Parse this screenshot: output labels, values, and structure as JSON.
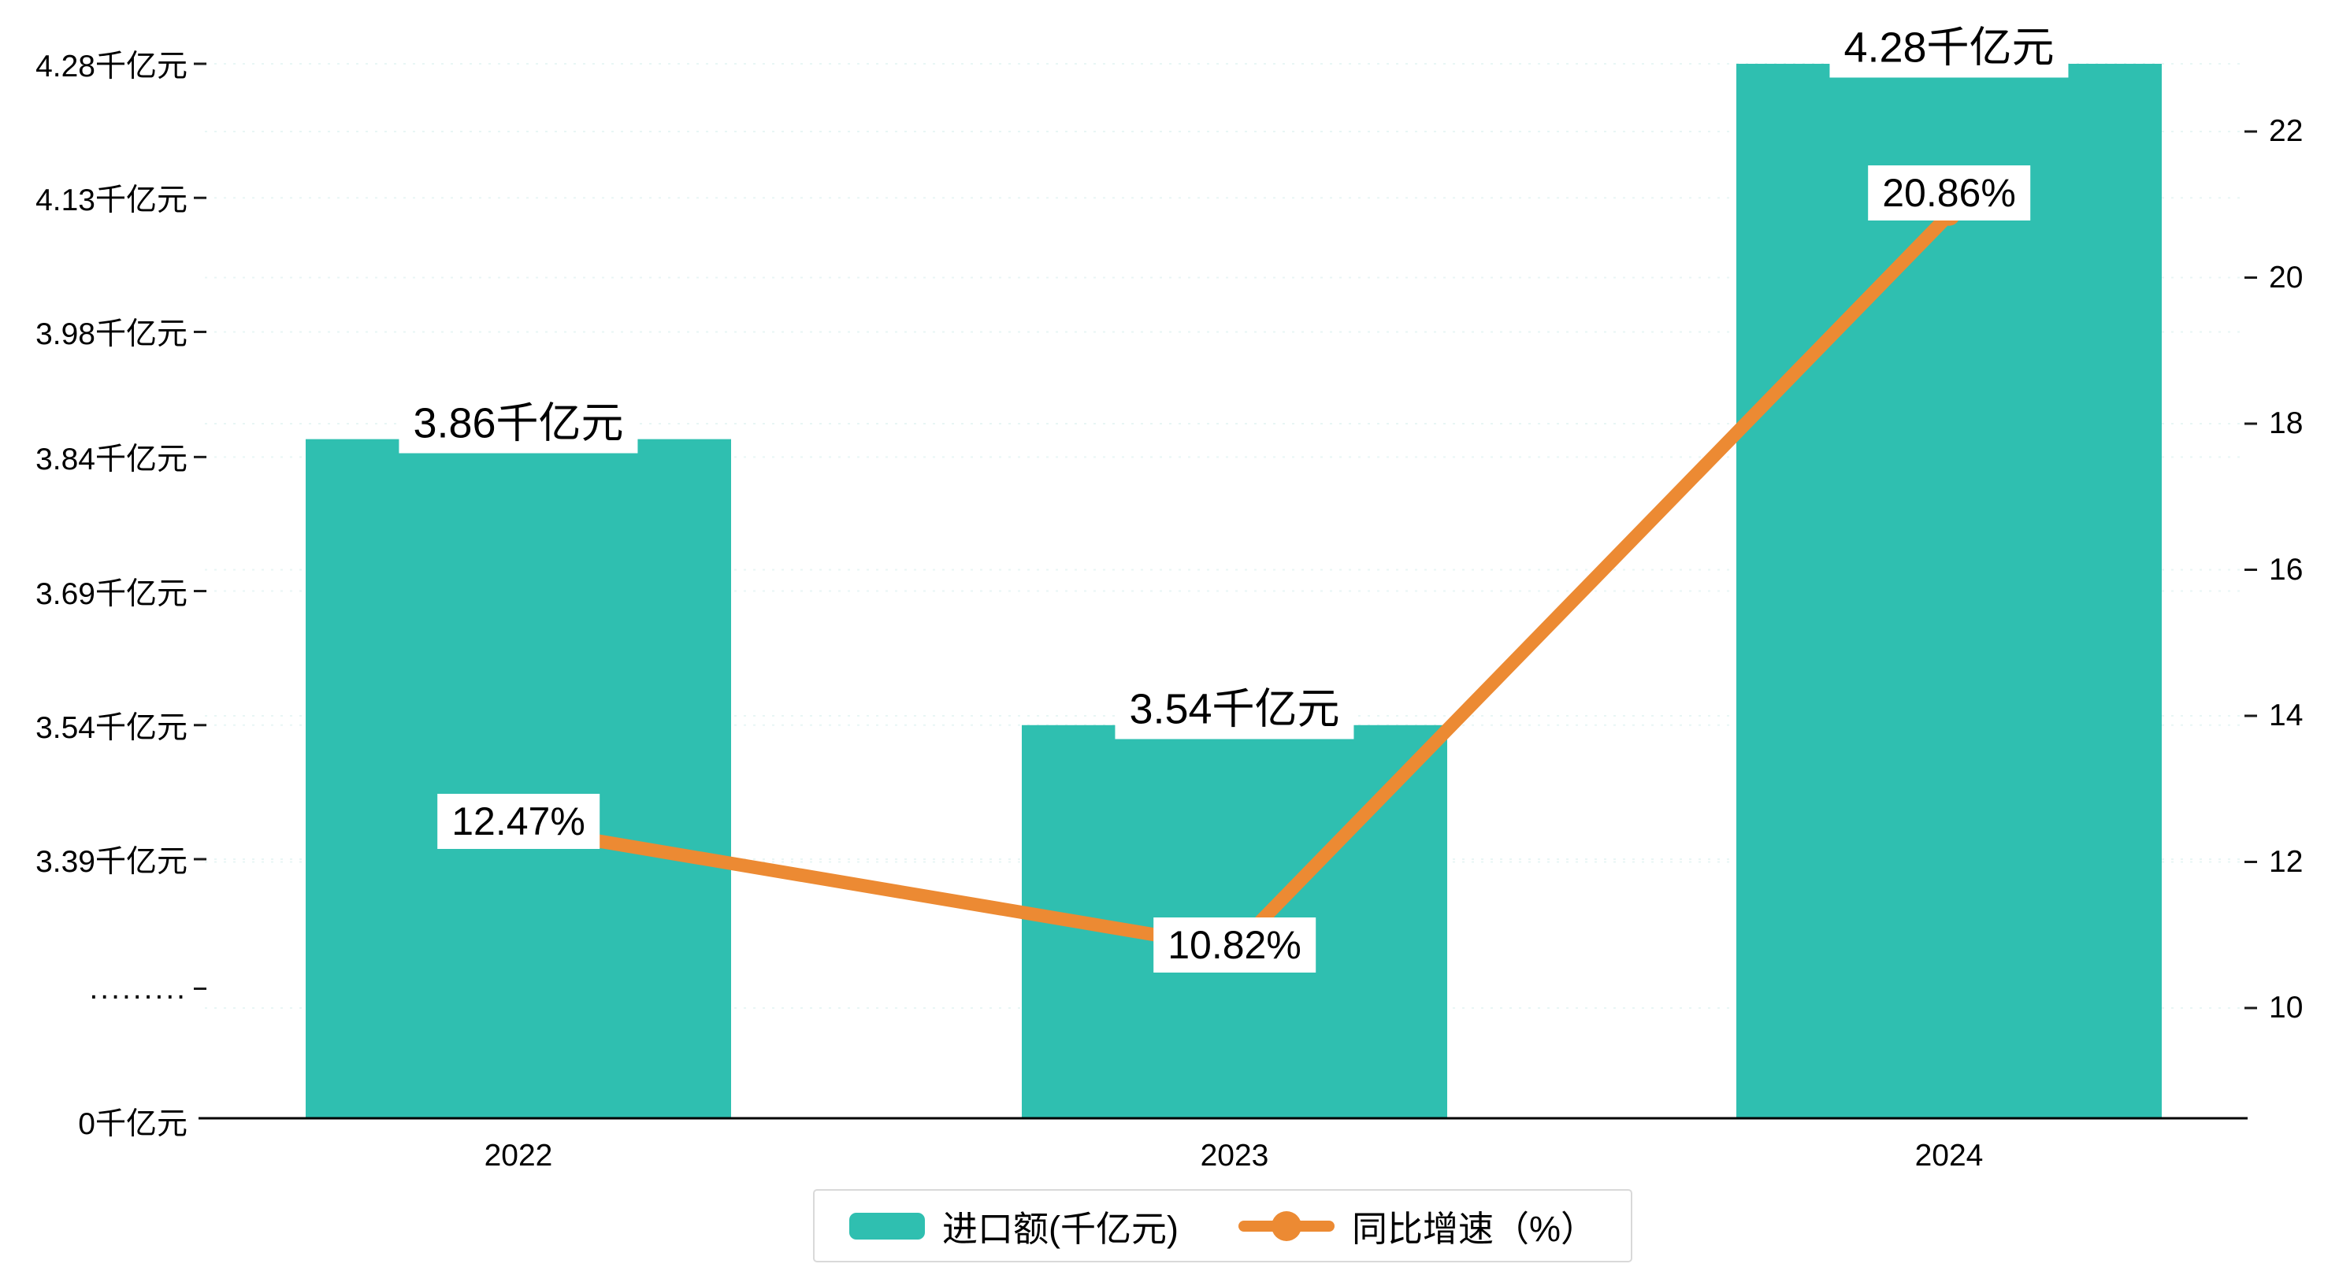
{
  "chart_data": {
    "type": "bar+line combo",
    "categories": [
      "2022",
      "2023",
      "2024"
    ],
    "series": [
      {
        "name": "进口额(千亿元)",
        "type": "bar",
        "values": [
          3.86,
          3.54,
          4.28
        ],
        "unit": "千亿元",
        "color": "#2fbfb0",
        "labels": [
          "3.86千亿元",
          "3.54千亿元",
          "4.28千亿元"
        ]
      },
      {
        "name": "同比增速（%）",
        "type": "line",
        "values": [
          12.47,
          10.82,
          20.86
        ],
        "unit": "%",
        "color": "#ec8a33",
        "labels": [
          "12.47%",
          "10.82%",
          "20.86%"
        ]
      }
    ],
    "left_axis": {
      "tick_values": [
        4.28,
        4.13,
        3.98,
        3.84,
        3.69,
        3.54,
        3.39
      ],
      "tick_labels": [
        "4.28千亿元",
        "4.13千亿元",
        "3.98千亿元",
        "3.84千亿元",
        "3.69千亿元",
        "3.54千亿元",
        "3.39千亿元"
      ],
      "break_label": ".........",
      "zero_label": "0千亿元",
      "range_top": 4.28,
      "range_bottom": 3.39,
      "has_axis_break": true
    },
    "right_axis": {
      "tick_values": [
        22,
        20,
        18,
        16,
        14,
        12,
        10
      ],
      "tick_labels": [
        "22",
        "20",
        "18",
        "16",
        "14",
        "12",
        "10"
      ],
      "min": 10,
      "max": 22
    },
    "legend": [
      {
        "label": "进口额(千亿元)",
        "marker": "bar-swatch",
        "color": "#2fbfb0"
      },
      {
        "label": "同比增速（%）",
        "marker": "line-dot",
        "color": "#ec8a33"
      }
    ],
    "grid": true,
    "legend_position": "bottom-center",
    "background": "#ffffff"
  }
}
